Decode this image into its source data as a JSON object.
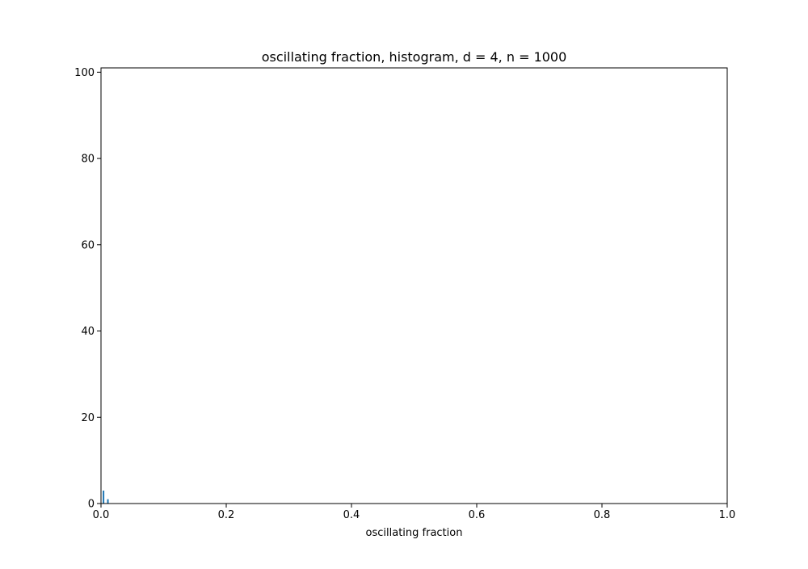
{
  "chart_data": {
    "type": "bar",
    "title": "oscillating fraction, histogram, d = 4, n = 1000",
    "xlabel": "oscillating fraction",
    "ylabel": "",
    "xlim": [
      0,
      1
    ],
    "ylim": [
      0,
      101
    ],
    "x_ticks": [
      0,
      0.2,
      0.4,
      0.6,
      0.8,
      1.0
    ],
    "x_tick_labels": [
      "0.0",
      "0.2",
      "0.4",
      "0.6",
      "0.8",
      "1.0"
    ],
    "y_ticks": [
      0,
      20,
      40,
      60,
      80,
      100
    ],
    "y_tick_labels": [
      "0",
      "20",
      "40",
      "60",
      "80",
      "100"
    ],
    "grid": false,
    "bar_color": "#1f77b4",
    "bars": [
      {
        "x": 0.004,
        "value": 3
      },
      {
        "x": 0.011,
        "value": 1
      }
    ]
  }
}
